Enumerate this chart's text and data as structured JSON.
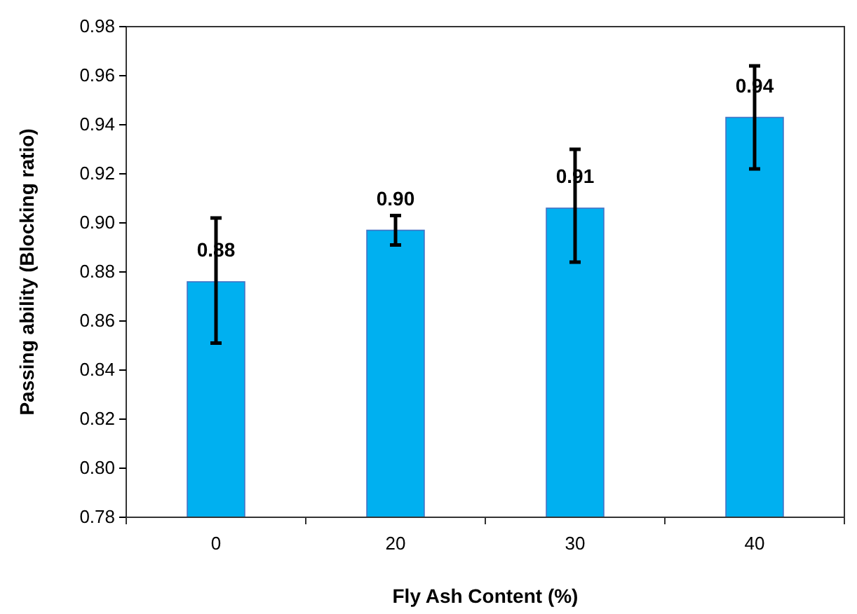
{
  "chart_data": {
    "type": "bar",
    "xlabel": "Fly Ash Content (%)",
    "ylabel": "Passing ability (Blocking ratio)",
    "categories": [
      "0",
      "20",
      "30",
      "40"
    ],
    "values": [
      0.876,
      0.897,
      0.906,
      0.943
    ],
    "errors": [
      [
        0.851,
        0.902
      ],
      [
        0.891,
        0.903
      ],
      [
        0.884,
        0.93
      ],
      [
        0.922,
        0.964
      ]
    ],
    "value_labels": [
      "0.88",
      "0.90",
      "0.91",
      "0.94"
    ],
    "color": "#00b0f0",
    "ylim": [
      0.78,
      0.98
    ],
    "yticks": [
      {
        "value": 0.78,
        "label": "0.78"
      },
      {
        "value": 0.8,
        "label": "0.80"
      },
      {
        "value": 0.82,
        "label": "0.82"
      },
      {
        "value": 0.84,
        "label": "0.84"
      },
      {
        "value": 0.86,
        "label": "0.86"
      },
      {
        "value": 0.88,
        "label": "0.88"
      },
      {
        "value": 0.9,
        "label": "0.90"
      },
      {
        "value": 0.92,
        "label": "0.92"
      },
      {
        "value": 0.94,
        "label": "0.94"
      },
      {
        "value": 0.96,
        "label": "0.96"
      },
      {
        "value": 0.98,
        "label": "0.98"
      }
    ],
    "grid": false
  }
}
